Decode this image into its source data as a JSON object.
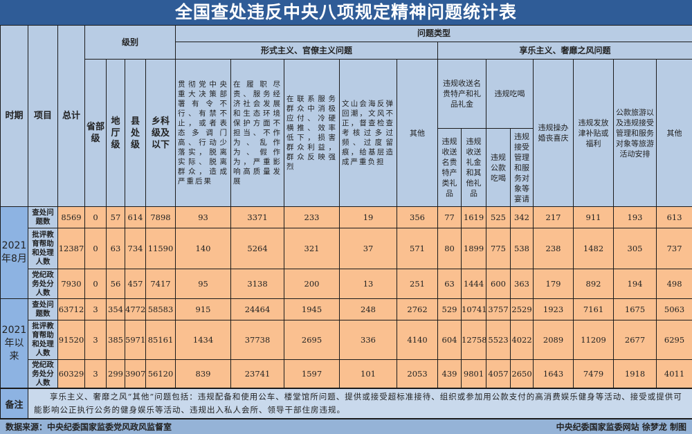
{
  "title": "全国查处违反中央八项规定精神问题统计表",
  "header": {
    "period": "时期",
    "item": "项目",
    "total": "总计",
    "level": "级别",
    "levels": [
      "省部级",
      "地厅级",
      "县处级",
      "乡科级及以下"
    ],
    "problem_type": "问题类型",
    "formalism": "形式主义、官僚主义问题",
    "formalism_cols": [
      "贯彻党中央重大决策部署有令不行、有禁不止，或者表态多调门高、行动少落实，脱离实际、脱离群众，造成严重后果",
      "在履职尽责、服务经济社会发展和生态环境保护方面不担当、不作为、乱作为、假作为，严重影响高质量发展",
      "在联系服务群众中消极应付、冷硬横推、效率低下，损害群众利益，群众反映强烈",
      "文山会海反弹回潮，文风不正，督查检查考核过多过频、过度留痕，给基层造成严重负担",
      "其他"
    ],
    "hedonism": "享乐主义、奢靡之风问题",
    "gift_group": "违规收送名贵特产和礼品礼金",
    "gift_cols": [
      "违规收送名贵特产类礼品",
      "违规收送礼金和其他礼品"
    ],
    "dining_group": "违规吃喝",
    "dining_cols": [
      "违规公款吃喝",
      "违规接受管理和服务对象等宴请"
    ],
    "hedonism_cols": [
      "违规操办婚丧喜庆",
      "违规发放津补贴或福利",
      "公款旅游以及违规接受管理和服务对象等旅游活动安排",
      "其他"
    ]
  },
  "groups": [
    {
      "period": "2021年8月",
      "rows": [
        {
          "item": "查处问题数",
          "values": [
            "8569",
            "0",
            "57",
            "614",
            "7898",
            "93",
            "3371",
            "233",
            "19",
            "356",
            "77",
            "1619",
            "525",
            "342",
            "217",
            "911",
            "193",
            "613"
          ]
        },
        {
          "item": "批评教育帮助和处理人数",
          "values": [
            "12387",
            "0",
            "63",
            "734",
            "11590",
            "140",
            "5264",
            "321",
            "37",
            "571",
            "80",
            "1899",
            "775",
            "538",
            "238",
            "1482",
            "305",
            "737"
          ]
        },
        {
          "item": "党纪政务处分人数",
          "values": [
            "7930",
            "0",
            "56",
            "457",
            "7417",
            "95",
            "3138",
            "200",
            "13",
            "251",
            "63",
            "1444",
            "600",
            "363",
            "179",
            "892",
            "194",
            "498"
          ]
        }
      ]
    },
    {
      "period": "2021年以来",
      "rows": [
        {
          "item": "查处问题数",
          "values": [
            "63712",
            "3",
            "354",
            "4772",
            "58583",
            "915",
            "24464",
            "1945",
            "248",
            "2762",
            "529",
            "10741",
            "3757",
            "2529",
            "1923",
            "7161",
            "1675",
            "5063"
          ]
        },
        {
          "item": "批评教育帮助和处理人数",
          "values": [
            "91520",
            "3",
            "385",
            "5971",
            "85161",
            "1434",
            "37738",
            "2695",
            "336",
            "4140",
            "604",
            "12758",
            "5523",
            "4022",
            "2089",
            "11209",
            "2677",
            "6295"
          ]
        },
        {
          "item": "党纪政务处分人数",
          "values": [
            "60329",
            "3",
            "299",
            "3907",
            "56120",
            "839",
            "23741",
            "1597",
            "101",
            "2053",
            "439",
            "9801",
            "4057",
            "2650",
            "1643",
            "7479",
            "1918",
            "4011"
          ]
        }
      ]
    }
  ],
  "note": {
    "label": "备注",
    "text": "享乐主义、奢靡之风“其他”问题包括：违规配备和使用公车、楼堂馆所问题、提供或接受超标准接待、组织或参加用公款支付的高消费娱乐健身等活动、接受或提供可能影响公正执行公务的健身娱乐等活动、违规出入私人会所、领导干部住房违规。"
  },
  "footer": {
    "source": "数据来源：中央纪委国家监委党风政风监督室",
    "credit": "中央纪委国家监委网站 徐梦龙 制图"
  },
  "colors": {
    "title_bg": "#2f5c97",
    "header_bg": "#b8cce4",
    "data_bg": "#fac090",
    "period_bg": "#8db3e2"
  }
}
